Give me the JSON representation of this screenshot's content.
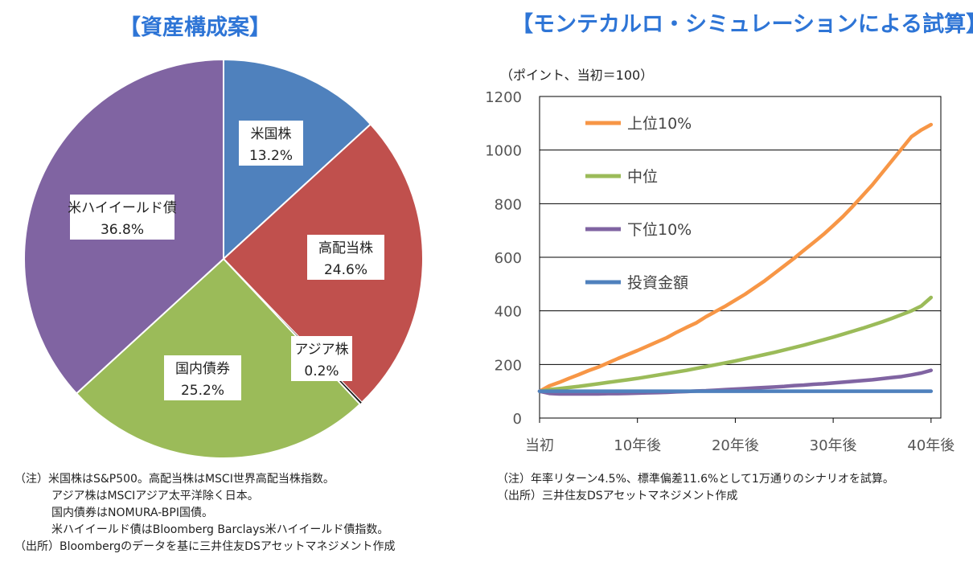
{
  "left_panel": {
    "title": "【資産構成案】",
    "notes": [
      "（注）米国株はS&P500。高配当株はMSCI世界高配当株指数。",
      "アジア株はMSCIアジア太平洋除く日本。",
      "国内債券はNOMURA-BPI国債。",
      "米ハイイールド債はBloomberg Barclays米ハイイールド債指数。",
      "（出所）Bloombergのデータを基に三井住友DSアセットマネジメント作成"
    ]
  },
  "right_panel": {
    "title": "【モンテカルロ・シミュレーションによる試算】",
    "unit_label": "（ポイント、当初＝100）",
    "notes": [
      "（注）年率リターン4.5%、標準偏差11.6%として1万通りのシナリオを試算。",
      "（出所）三井住友DSアセットマネジメント作成"
    ]
  },
  "chart_data": [
    {
      "type": "pie",
      "title": "【資産構成案】",
      "start": "12 o'clock, clockwise",
      "slices": [
        {
          "label": "米国株",
          "value": 13.2,
          "value_label": "13.2%",
          "color": "#4f81bd"
        },
        {
          "label": "高配当株",
          "value": 24.6,
          "value_label": "24.6%",
          "color": "#c0504d"
        },
        {
          "label": "アジア株",
          "value": 0.2,
          "value_label": "0.2%",
          "color": "#1a1a1a"
        },
        {
          "label": "国内債券",
          "value": 25.2,
          "value_label": "25.2%",
          "color": "#9bbb59"
        },
        {
          "label": "米ハイイールド債",
          "value": 36.8,
          "value_label": "36.8%",
          "color": "#8064a2"
        }
      ]
    },
    {
      "type": "line",
      "title": "【モンテカルロ・シミュレーションによる試算】",
      "ylabel": "（ポイント、当初＝100）",
      "xlabel": "",
      "x": [
        0,
        1,
        2,
        3,
        4,
        5,
        6,
        7,
        8,
        9,
        10,
        11,
        12,
        13,
        14,
        15,
        16,
        17,
        18,
        19,
        20,
        21,
        22,
        23,
        24,
        25,
        26,
        27,
        28,
        29,
        30,
        31,
        32,
        33,
        34,
        35,
        36,
        37,
        38,
        39,
        40
      ],
      "xticks": [
        0,
        10,
        20,
        30,
        40
      ],
      "xtick_labels": [
        "当初",
        "10年後",
        "20年後",
        "30年後",
        "40年後"
      ],
      "ylim": [
        0,
        1200
      ],
      "yticks": [
        0,
        200,
        400,
        600,
        800,
        1000,
        1200
      ],
      "grid": true,
      "legend_position": "top-left",
      "series": [
        {
          "name": "上位10%",
          "color": "#f79646",
          "values": [
            100,
            120,
            133,
            148,
            162,
            177,
            190,
            206,
            222,
            237,
            252,
            268,
            284,
            300,
            320,
            338,
            355,
            378,
            398,
            418,
            440,
            462,
            487,
            512,
            540,
            568,
            596,
            626,
            655,
            685,
            718,
            752,
            790,
            830,
            870,
            915,
            960,
            1005,
            1050,
            1075,
            1095
          ]
        },
        {
          "name": "中位",
          "color": "#9bbb59",
          "values": [
            100,
            106,
            110,
            114,
            118,
            123,
            128,
            133,
            138,
            143,
            148,
            154,
            160,
            166,
            172,
            178,
            185,
            192,
            199,
            206,
            213,
            221,
            229,
            237,
            245,
            254,
            263,
            272,
            282,
            292,
            302,
            313,
            324,
            335,
            347,
            359,
            372,
            386,
            400,
            418,
            450
          ]
        },
        {
          "name": "下位10%",
          "color": "#8064a2",
          "values": [
            100,
            92,
            90,
            90,
            90,
            90,
            90,
            91,
            91,
            92,
            93,
            94,
            95,
            96,
            98,
            99,
            101,
            102,
            104,
            106,
            108,
            110,
            112,
            114,
            116,
            118,
            121,
            123,
            126,
            128,
            131,
            134,
            137,
            140,
            143,
            147,
            151,
            155,
            161,
            168,
            178
          ]
        },
        {
          "name": "投資金額",
          "color": "#4f81bd",
          "values": [
            100,
            100,
            100,
            100,
            100,
            100,
            100,
            100,
            100,
            100,
            100,
            100,
            100,
            100,
            100,
            100,
            100,
            100,
            100,
            100,
            100,
            100,
            100,
            100,
            100,
            100,
            100,
            100,
            100,
            100,
            100,
            100,
            100,
            100,
            100,
            100,
            100,
            100,
            100,
            100,
            100
          ]
        }
      ]
    }
  ]
}
